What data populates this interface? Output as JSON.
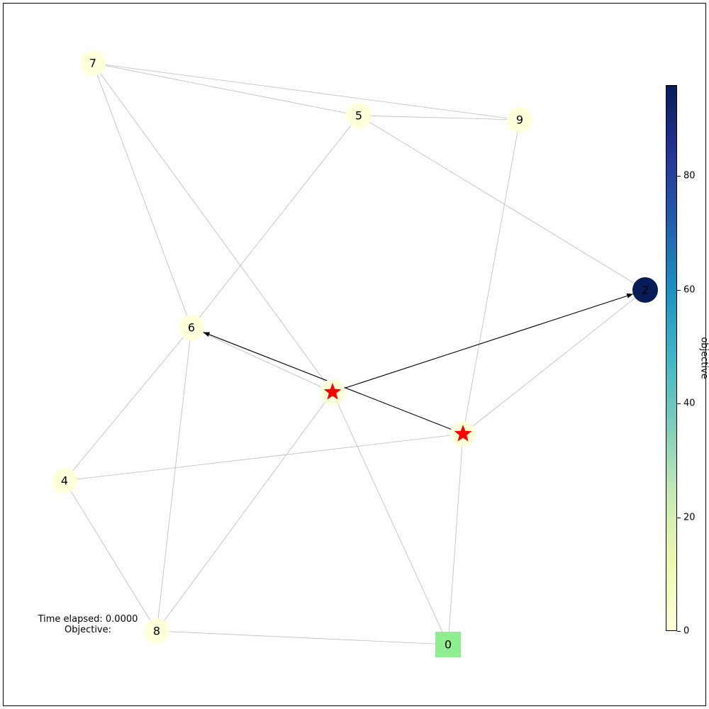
{
  "graph": {
    "nodes": [
      {
        "id": "0",
        "label": "0",
        "shape": "square",
        "color": "#90ee90"
      },
      {
        "id": "1",
        "label": "",
        "shape": "star",
        "color": "#ffffd9"
      },
      {
        "id": "2",
        "label": "2",
        "shape": "circle",
        "color": "#081d58"
      },
      {
        "id": "3",
        "label": "",
        "shape": "star",
        "color": "#ffffd9"
      },
      {
        "id": "4",
        "label": "4",
        "shape": "circle",
        "color": "#ffffd9"
      },
      {
        "id": "5",
        "label": "5",
        "shape": "circle",
        "color": "#ffffd9"
      },
      {
        "id": "6",
        "label": "6",
        "shape": "circle",
        "color": "#ffffd9"
      },
      {
        "id": "7",
        "label": "7",
        "shape": "circle",
        "color": "#ffffd9"
      },
      {
        "id": "8",
        "label": "8",
        "shape": "circle",
        "color": "#ffffd9"
      },
      {
        "id": "9",
        "label": "9",
        "shape": "circle",
        "color": "#ffffd9"
      }
    ],
    "edges": [
      [
        "7",
        "5"
      ],
      [
        "7",
        "9"
      ],
      [
        "7",
        "6"
      ],
      [
        "7",
        "1"
      ],
      [
        "5",
        "9"
      ],
      [
        "5",
        "2"
      ],
      [
        "5",
        "6"
      ],
      [
        "9",
        "3"
      ],
      [
        "6",
        "1"
      ],
      [
        "6",
        "4"
      ],
      [
        "6",
        "8"
      ],
      [
        "1",
        "0"
      ],
      [
        "1",
        "8"
      ],
      [
        "3",
        "0"
      ],
      [
        "3",
        "4"
      ],
      [
        "3",
        "2"
      ],
      [
        "4",
        "8"
      ],
      [
        "8",
        "0"
      ]
    ],
    "path": [
      [
        "3",
        "6"
      ],
      [
        "1",
        "2"
      ]
    ],
    "star_color": "#ff0000"
  },
  "status": {
    "time_line": "Time elapsed: 0.0000",
    "objective_line": "Objective:"
  },
  "colorbar": {
    "label": "objective",
    "min": 0,
    "max": 96,
    "ticks": [
      "0",
      "20",
      "40",
      "60",
      "80"
    ],
    "colormap": "YlGnBu"
  }
}
